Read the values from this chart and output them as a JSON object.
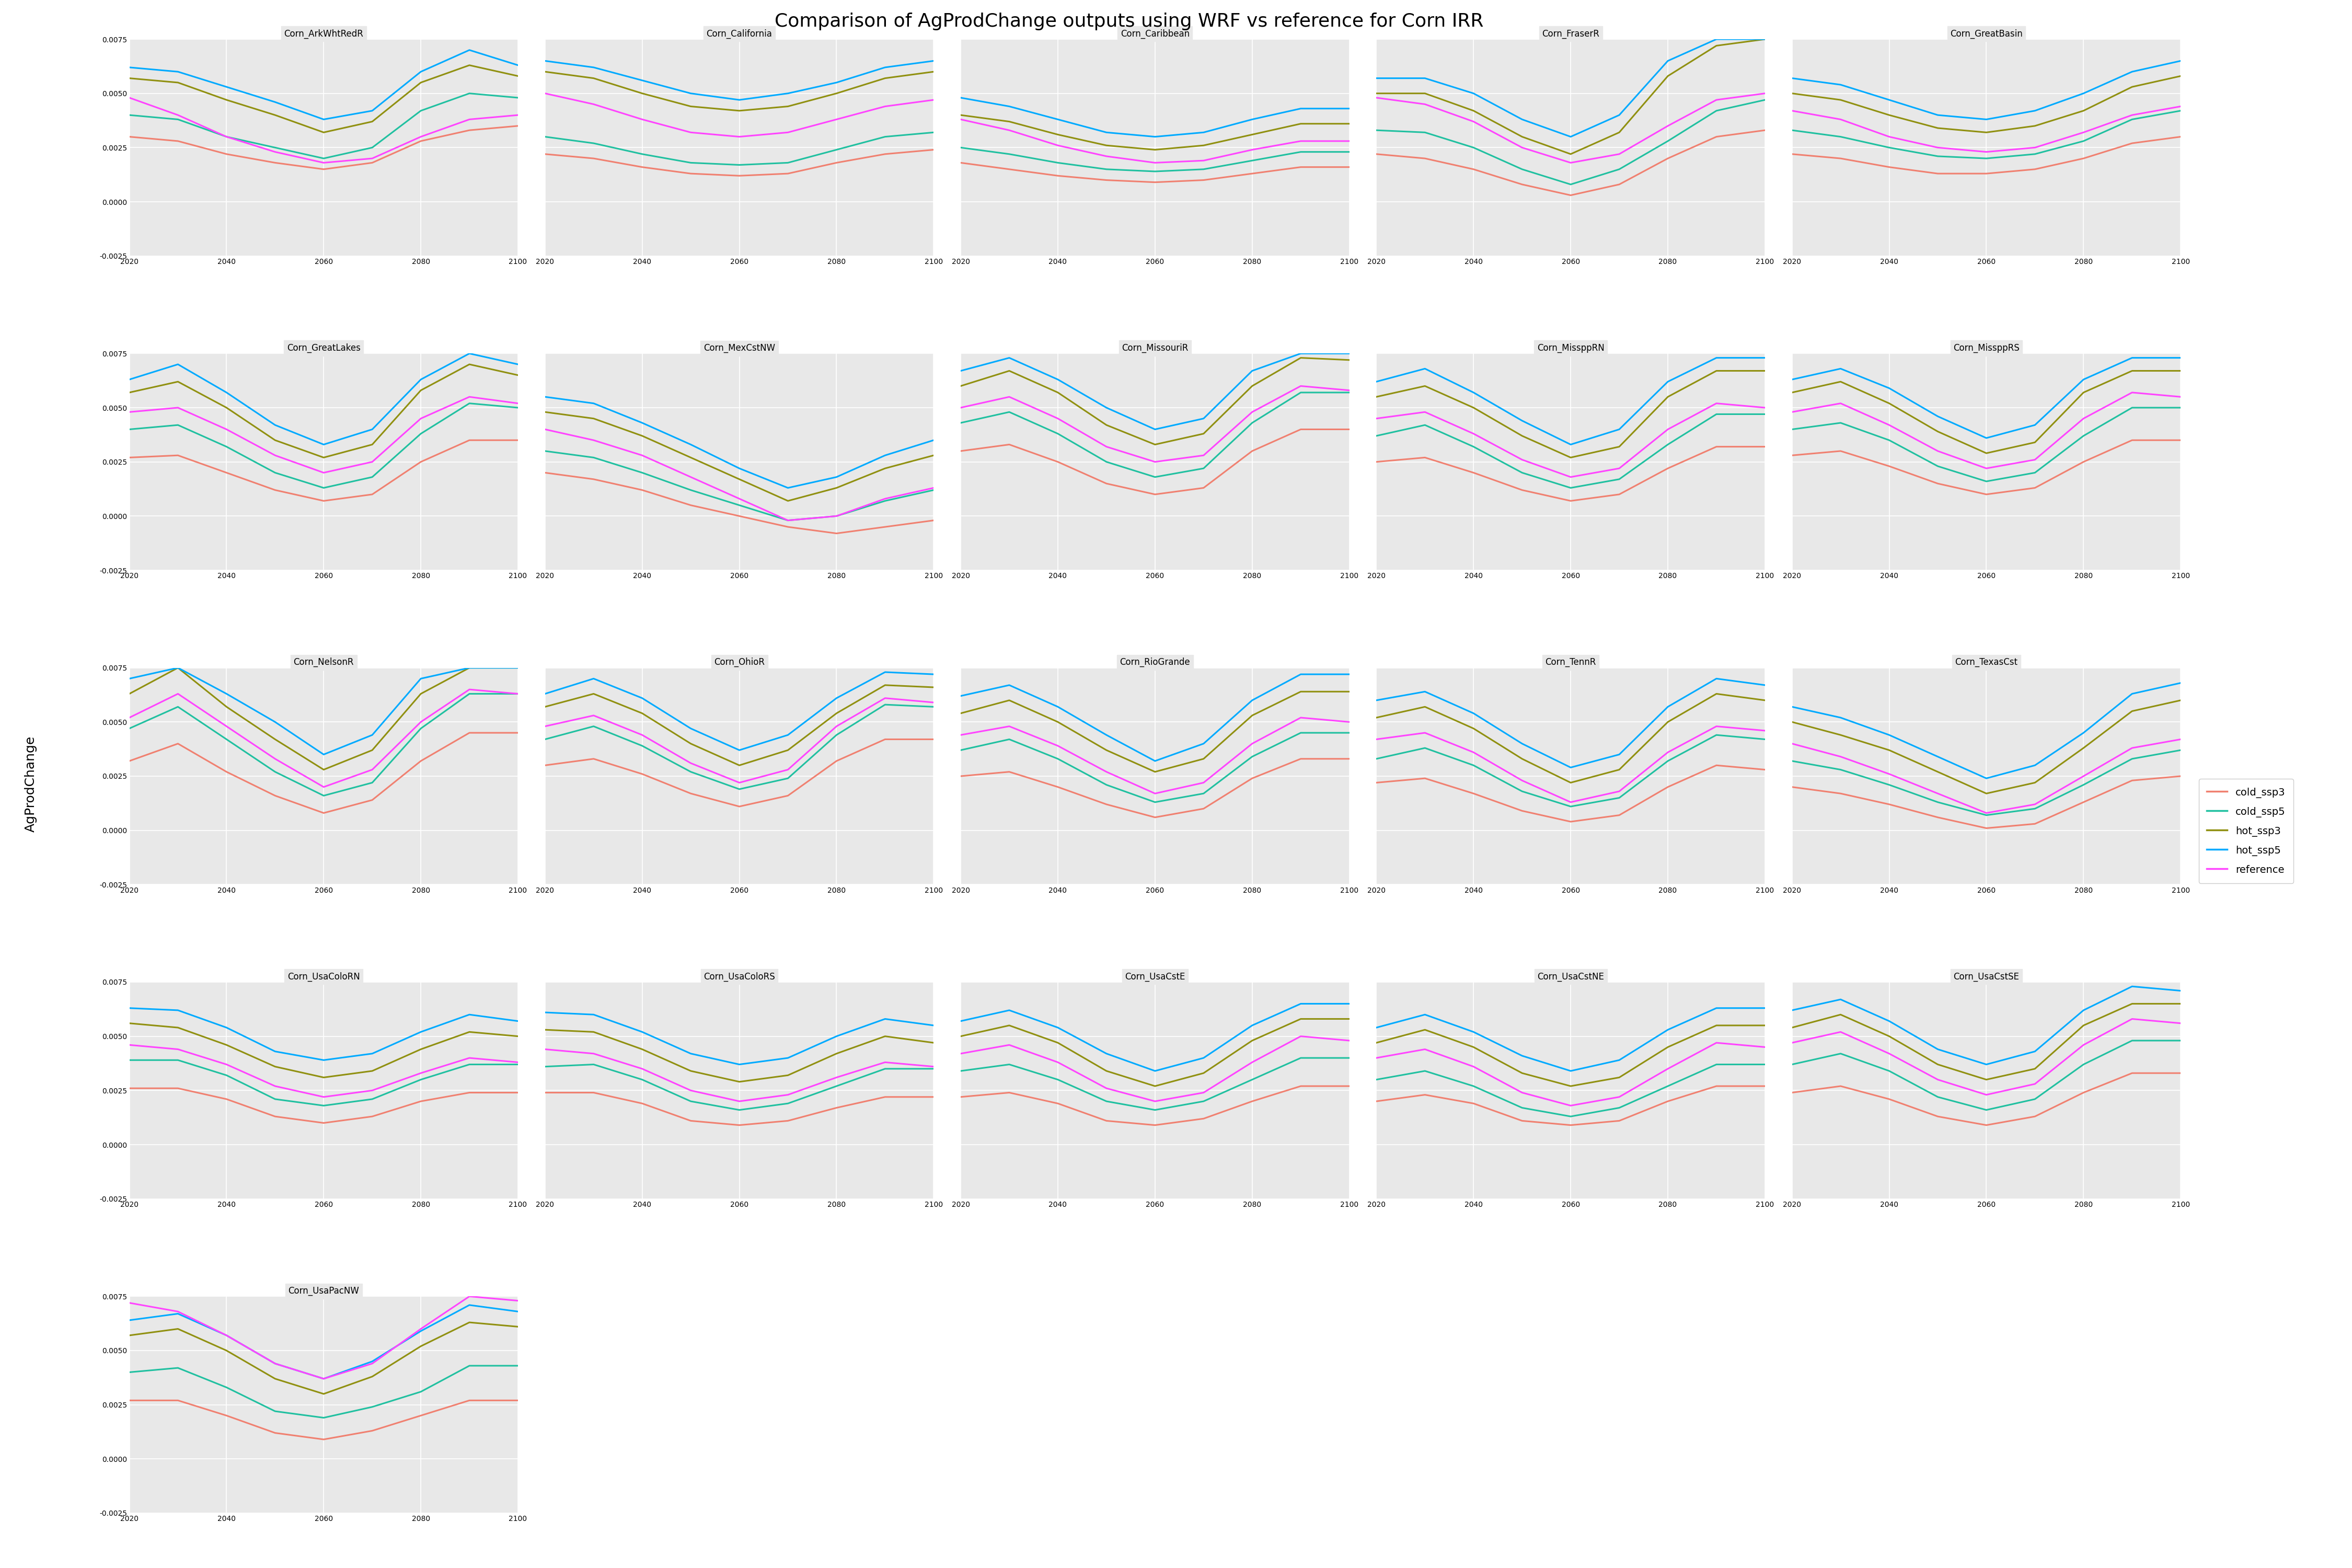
{
  "title": "Comparison of AgProdChange outputs using WRF vs reference for Corn IRR",
  "ylabel": "AgProdChange",
  "xlim": [
    2020,
    2100
  ],
  "ylim": [
    -0.0025,
    0.0075
  ],
  "yticks": [
    -0.0025,
    0.0,
    0.0025,
    0.005,
    0.0075
  ],
  "xticks": [
    2020,
    2040,
    2060,
    2080,
    2100
  ],
  "x": [
    2020,
    2030,
    2040,
    2050,
    2060,
    2070,
    2080,
    2090,
    2100
  ],
  "panel_bg": "#e8e8e8",
  "grid_color": "#ffffff",
  "line_colors": {
    "cold_ssp3": "#f08070",
    "cold_ssp5": "#20c0a0",
    "hot_ssp3": "#909010",
    "hot_ssp5": "#00aaff",
    "reference": "#ff44ff"
  },
  "line_width": 2.2,
  "subplots": [
    {
      "name": "Corn_ArkWhtRedR",
      "cold_ssp3": [
        0.003,
        0.0028,
        0.0022,
        0.0018,
        0.0015,
        0.0018,
        0.0028,
        0.0033,
        0.0035
      ],
      "cold_ssp5": [
        0.004,
        0.0038,
        0.003,
        0.0025,
        0.002,
        0.0025,
        0.0042,
        0.005,
        0.0048
      ],
      "hot_ssp3": [
        0.0057,
        0.0055,
        0.0047,
        0.004,
        0.0032,
        0.0037,
        0.0055,
        0.0063,
        0.0058
      ],
      "hot_ssp5": [
        0.0062,
        0.006,
        0.0053,
        0.0046,
        0.0038,
        0.0042,
        0.006,
        0.007,
        0.0063
      ],
      "reference": [
        0.0048,
        0.004,
        0.003,
        0.0023,
        0.0018,
        0.002,
        0.003,
        0.0038,
        0.004
      ]
    },
    {
      "name": "Corn_California",
      "cold_ssp3": [
        0.0022,
        0.002,
        0.0016,
        0.0013,
        0.0012,
        0.0013,
        0.0018,
        0.0022,
        0.0024
      ],
      "cold_ssp5": [
        0.003,
        0.0027,
        0.0022,
        0.0018,
        0.0017,
        0.0018,
        0.0024,
        0.003,
        0.0032
      ],
      "hot_ssp3": [
        0.006,
        0.0057,
        0.005,
        0.0044,
        0.0042,
        0.0044,
        0.005,
        0.0057,
        0.006
      ],
      "hot_ssp5": [
        0.0065,
        0.0062,
        0.0056,
        0.005,
        0.0047,
        0.005,
        0.0055,
        0.0062,
        0.0065
      ],
      "reference": [
        0.005,
        0.0045,
        0.0038,
        0.0032,
        0.003,
        0.0032,
        0.0038,
        0.0044,
        0.0047
      ]
    },
    {
      "name": "Corn_Caribbean",
      "cold_ssp3": [
        0.0018,
        0.0015,
        0.0012,
        0.001,
        0.0009,
        0.001,
        0.0013,
        0.0016,
        0.0016
      ],
      "cold_ssp5": [
        0.0025,
        0.0022,
        0.0018,
        0.0015,
        0.0014,
        0.0015,
        0.0019,
        0.0023,
        0.0023
      ],
      "hot_ssp3": [
        0.004,
        0.0037,
        0.0031,
        0.0026,
        0.0024,
        0.0026,
        0.0031,
        0.0036,
        0.0036
      ],
      "hot_ssp5": [
        0.0048,
        0.0044,
        0.0038,
        0.0032,
        0.003,
        0.0032,
        0.0038,
        0.0043,
        0.0043
      ],
      "reference": [
        0.0038,
        0.0033,
        0.0026,
        0.0021,
        0.0018,
        0.0019,
        0.0024,
        0.0028,
        0.0028
      ]
    },
    {
      "name": "Corn_FraserR",
      "cold_ssp3": [
        0.0022,
        0.002,
        0.0015,
        0.0008,
        0.0003,
        0.0008,
        0.002,
        0.003,
        0.0033
      ],
      "cold_ssp5": [
        0.0033,
        0.0032,
        0.0025,
        0.0015,
        0.0008,
        0.0015,
        0.0028,
        0.0042,
        0.0047
      ],
      "hot_ssp3": [
        0.005,
        0.005,
        0.0042,
        0.003,
        0.0022,
        0.0032,
        0.0058,
        0.0072,
        0.0075
      ],
      "hot_ssp5": [
        0.0057,
        0.0057,
        0.005,
        0.0038,
        0.003,
        0.004,
        0.0065,
        0.0075,
        0.0075
      ],
      "reference": [
        0.0048,
        0.0045,
        0.0037,
        0.0025,
        0.0018,
        0.0022,
        0.0035,
        0.0047,
        0.005
      ]
    },
    {
      "name": "Corn_GreatBasin",
      "cold_ssp3": [
        0.0022,
        0.002,
        0.0016,
        0.0013,
        0.0013,
        0.0015,
        0.002,
        0.0027,
        0.003
      ],
      "cold_ssp5": [
        0.0033,
        0.003,
        0.0025,
        0.0021,
        0.002,
        0.0022,
        0.0028,
        0.0038,
        0.0042
      ],
      "hot_ssp3": [
        0.005,
        0.0047,
        0.004,
        0.0034,
        0.0032,
        0.0035,
        0.0042,
        0.0053,
        0.0058
      ],
      "hot_ssp5": [
        0.0057,
        0.0054,
        0.0047,
        0.004,
        0.0038,
        0.0042,
        0.005,
        0.006,
        0.0065
      ],
      "reference": [
        0.0042,
        0.0038,
        0.003,
        0.0025,
        0.0023,
        0.0025,
        0.0032,
        0.004,
        0.0044
      ]
    },
    {
      "name": "Corn_GreatLakes",
      "cold_ssp3": [
        0.0027,
        0.0028,
        0.002,
        0.0012,
        0.0007,
        0.001,
        0.0025,
        0.0035,
        0.0035
      ],
      "cold_ssp5": [
        0.004,
        0.0042,
        0.0032,
        0.002,
        0.0013,
        0.0018,
        0.0038,
        0.0052,
        0.005
      ],
      "hot_ssp3": [
        0.0057,
        0.0062,
        0.005,
        0.0035,
        0.0027,
        0.0033,
        0.0058,
        0.007,
        0.0065
      ],
      "hot_ssp5": [
        0.0063,
        0.007,
        0.0057,
        0.0042,
        0.0033,
        0.004,
        0.0063,
        0.0075,
        0.007
      ],
      "reference": [
        0.0048,
        0.005,
        0.004,
        0.0028,
        0.002,
        0.0025,
        0.0045,
        0.0055,
        0.0052
      ]
    },
    {
      "name": "Corn_MexCstNW",
      "cold_ssp3": [
        0.002,
        0.0017,
        0.0012,
        0.0005,
        0.0,
        -0.0005,
        -0.0008,
        -0.0005,
        -0.0002
      ],
      "cold_ssp5": [
        0.003,
        0.0027,
        0.002,
        0.0012,
        0.0005,
        -0.0002,
        0.0,
        0.0007,
        0.0012
      ],
      "hot_ssp3": [
        0.0048,
        0.0045,
        0.0037,
        0.0027,
        0.0017,
        0.0007,
        0.0013,
        0.0022,
        0.0028
      ],
      "hot_ssp5": [
        0.0055,
        0.0052,
        0.0043,
        0.0033,
        0.0022,
        0.0013,
        0.0018,
        0.0028,
        0.0035
      ],
      "reference": [
        0.004,
        0.0035,
        0.0028,
        0.0018,
        0.0008,
        -0.0002,
        0.0,
        0.0008,
        0.0013
      ]
    },
    {
      "name": "Corn_MissouriR",
      "cold_ssp3": [
        0.003,
        0.0033,
        0.0025,
        0.0015,
        0.001,
        0.0013,
        0.003,
        0.004,
        0.004
      ],
      "cold_ssp5": [
        0.0043,
        0.0048,
        0.0038,
        0.0025,
        0.0018,
        0.0022,
        0.0043,
        0.0057,
        0.0057
      ],
      "hot_ssp3": [
        0.006,
        0.0067,
        0.0057,
        0.0042,
        0.0033,
        0.0038,
        0.006,
        0.0073,
        0.0072
      ],
      "hot_ssp5": [
        0.0067,
        0.0073,
        0.0063,
        0.005,
        0.004,
        0.0045,
        0.0067,
        0.0075,
        0.0075
      ],
      "reference": [
        0.005,
        0.0055,
        0.0045,
        0.0032,
        0.0025,
        0.0028,
        0.0048,
        0.006,
        0.0058
      ]
    },
    {
      "name": "Corn_MissppRN",
      "cold_ssp3": [
        0.0025,
        0.0027,
        0.002,
        0.0012,
        0.0007,
        0.001,
        0.0022,
        0.0032,
        0.0032
      ],
      "cold_ssp5": [
        0.0037,
        0.0042,
        0.0032,
        0.002,
        0.0013,
        0.0017,
        0.0033,
        0.0047,
        0.0047
      ],
      "hot_ssp3": [
        0.0055,
        0.006,
        0.005,
        0.0037,
        0.0027,
        0.0032,
        0.0055,
        0.0067,
        0.0067
      ],
      "hot_ssp5": [
        0.0062,
        0.0068,
        0.0057,
        0.0044,
        0.0033,
        0.004,
        0.0062,
        0.0073,
        0.0073
      ],
      "reference": [
        0.0045,
        0.0048,
        0.0038,
        0.0026,
        0.0018,
        0.0022,
        0.004,
        0.0052,
        0.005
      ]
    },
    {
      "name": "Corn_MissppRS",
      "cold_ssp3": [
        0.0028,
        0.003,
        0.0023,
        0.0015,
        0.001,
        0.0013,
        0.0025,
        0.0035,
        0.0035
      ],
      "cold_ssp5": [
        0.004,
        0.0043,
        0.0035,
        0.0023,
        0.0016,
        0.002,
        0.0037,
        0.005,
        0.005
      ],
      "hot_ssp3": [
        0.0057,
        0.0062,
        0.0052,
        0.0039,
        0.0029,
        0.0034,
        0.0057,
        0.0067,
        0.0067
      ],
      "hot_ssp5": [
        0.0063,
        0.0068,
        0.0059,
        0.0046,
        0.0036,
        0.0042,
        0.0063,
        0.0073,
        0.0073
      ],
      "reference": [
        0.0048,
        0.0052,
        0.0042,
        0.003,
        0.0022,
        0.0026,
        0.0045,
        0.0057,
        0.0055
      ]
    },
    {
      "name": "Corn_NelsonR",
      "cold_ssp3": [
        0.0032,
        0.004,
        0.0027,
        0.0016,
        0.0008,
        0.0014,
        0.0032,
        0.0045,
        0.0045
      ],
      "cold_ssp5": [
        0.0047,
        0.0057,
        0.0042,
        0.0027,
        0.0016,
        0.0022,
        0.0047,
        0.0063,
        0.0063
      ],
      "hot_ssp3": [
        0.0063,
        0.0075,
        0.0057,
        0.0042,
        0.0028,
        0.0037,
        0.0063,
        0.0075,
        0.0075
      ],
      "hot_ssp5": [
        0.007,
        0.0075,
        0.0063,
        0.005,
        0.0035,
        0.0044,
        0.007,
        0.0075,
        0.0075
      ],
      "reference": [
        0.0052,
        0.0063,
        0.0048,
        0.0033,
        0.002,
        0.0028,
        0.005,
        0.0065,
        0.0063
      ]
    },
    {
      "name": "Corn_OhioR",
      "cold_ssp3": [
        0.003,
        0.0033,
        0.0026,
        0.0017,
        0.0011,
        0.0016,
        0.0032,
        0.0042,
        0.0042
      ],
      "cold_ssp5": [
        0.0042,
        0.0048,
        0.0039,
        0.0027,
        0.0019,
        0.0024,
        0.0044,
        0.0058,
        0.0057
      ],
      "hot_ssp3": [
        0.0057,
        0.0063,
        0.0054,
        0.004,
        0.003,
        0.0037,
        0.0054,
        0.0067,
        0.0066
      ],
      "hot_ssp5": [
        0.0063,
        0.007,
        0.0061,
        0.0047,
        0.0037,
        0.0044,
        0.0061,
        0.0073,
        0.0072
      ],
      "reference": [
        0.0048,
        0.0053,
        0.0044,
        0.0031,
        0.0022,
        0.0028,
        0.0048,
        0.0061,
        0.0059
      ]
    },
    {
      "name": "Corn_RioGrande",
      "cold_ssp3": [
        0.0025,
        0.0027,
        0.002,
        0.0012,
        0.0006,
        0.001,
        0.0024,
        0.0033,
        0.0033
      ],
      "cold_ssp5": [
        0.0037,
        0.0042,
        0.0033,
        0.0021,
        0.0013,
        0.0017,
        0.0034,
        0.0045,
        0.0045
      ],
      "hot_ssp3": [
        0.0054,
        0.006,
        0.005,
        0.0037,
        0.0027,
        0.0033,
        0.0053,
        0.0064,
        0.0064
      ],
      "hot_ssp5": [
        0.0062,
        0.0067,
        0.0057,
        0.0044,
        0.0032,
        0.004,
        0.006,
        0.0072,
        0.0072
      ],
      "reference": [
        0.0044,
        0.0048,
        0.0039,
        0.0027,
        0.0017,
        0.0022,
        0.004,
        0.0052,
        0.005
      ]
    },
    {
      "name": "Corn_TennR",
      "cold_ssp3": [
        0.0022,
        0.0024,
        0.0017,
        0.0009,
        0.0004,
        0.0007,
        0.002,
        0.003,
        0.0028
      ],
      "cold_ssp5": [
        0.0033,
        0.0038,
        0.003,
        0.0018,
        0.0011,
        0.0015,
        0.0032,
        0.0044,
        0.0042
      ],
      "hot_ssp3": [
        0.0052,
        0.0057,
        0.0047,
        0.0033,
        0.0022,
        0.0028,
        0.005,
        0.0063,
        0.006
      ],
      "hot_ssp5": [
        0.006,
        0.0064,
        0.0054,
        0.004,
        0.0029,
        0.0035,
        0.0057,
        0.007,
        0.0067
      ],
      "reference": [
        0.0042,
        0.0045,
        0.0036,
        0.0023,
        0.0013,
        0.0018,
        0.0036,
        0.0048,
        0.0046
      ]
    },
    {
      "name": "Corn_TexasCst",
      "cold_ssp3": [
        0.002,
        0.0017,
        0.0012,
        0.0006,
        0.0001,
        0.0003,
        0.0013,
        0.0023,
        0.0025
      ],
      "cold_ssp5": [
        0.0032,
        0.0028,
        0.0021,
        0.0013,
        0.0007,
        0.001,
        0.0021,
        0.0033,
        0.0037
      ],
      "hot_ssp3": [
        0.005,
        0.0044,
        0.0037,
        0.0027,
        0.0017,
        0.0022,
        0.0038,
        0.0055,
        0.006
      ],
      "hot_ssp5": [
        0.0057,
        0.0052,
        0.0044,
        0.0034,
        0.0024,
        0.003,
        0.0045,
        0.0063,
        0.0068
      ],
      "reference": [
        0.004,
        0.0034,
        0.0026,
        0.0017,
        0.0008,
        0.0012,
        0.0025,
        0.0038,
        0.0042
      ]
    },
    {
      "name": "Corn_UsaColoRN",
      "cold_ssp3": [
        0.0026,
        0.0026,
        0.0021,
        0.0013,
        0.001,
        0.0013,
        0.002,
        0.0024,
        0.0024
      ],
      "cold_ssp5": [
        0.0039,
        0.0039,
        0.0032,
        0.0021,
        0.0018,
        0.0021,
        0.003,
        0.0037,
        0.0037
      ],
      "hot_ssp3": [
        0.0056,
        0.0054,
        0.0046,
        0.0036,
        0.0031,
        0.0034,
        0.0044,
        0.0052,
        0.005
      ],
      "hot_ssp5": [
        0.0063,
        0.0062,
        0.0054,
        0.0043,
        0.0039,
        0.0042,
        0.0052,
        0.006,
        0.0057
      ],
      "reference": [
        0.0046,
        0.0044,
        0.0037,
        0.0027,
        0.0022,
        0.0025,
        0.0033,
        0.004,
        0.0038
      ]
    },
    {
      "name": "Corn_UsaColoRS",
      "cold_ssp3": [
        0.0024,
        0.0024,
        0.0019,
        0.0011,
        0.0009,
        0.0011,
        0.0017,
        0.0022,
        0.0022
      ],
      "cold_ssp5": [
        0.0036,
        0.0037,
        0.003,
        0.002,
        0.0016,
        0.0019,
        0.0027,
        0.0035,
        0.0035
      ],
      "hot_ssp3": [
        0.0053,
        0.0052,
        0.0044,
        0.0034,
        0.0029,
        0.0032,
        0.0042,
        0.005,
        0.0047
      ],
      "hot_ssp5": [
        0.0061,
        0.006,
        0.0052,
        0.0042,
        0.0037,
        0.004,
        0.005,
        0.0058,
        0.0055
      ],
      "reference": [
        0.0044,
        0.0042,
        0.0035,
        0.0025,
        0.002,
        0.0023,
        0.0031,
        0.0038,
        0.0036
      ]
    },
    {
      "name": "Corn_UsaCstE",
      "cold_ssp3": [
        0.0022,
        0.0024,
        0.0019,
        0.0011,
        0.0009,
        0.0012,
        0.002,
        0.0027,
        0.0027
      ],
      "cold_ssp5": [
        0.0034,
        0.0037,
        0.003,
        0.002,
        0.0016,
        0.002,
        0.003,
        0.004,
        0.004
      ],
      "hot_ssp3": [
        0.005,
        0.0055,
        0.0047,
        0.0034,
        0.0027,
        0.0033,
        0.0048,
        0.0058,
        0.0058
      ],
      "hot_ssp5": [
        0.0057,
        0.0062,
        0.0054,
        0.0042,
        0.0034,
        0.004,
        0.0055,
        0.0065,
        0.0065
      ],
      "reference": [
        0.0042,
        0.0046,
        0.0038,
        0.0026,
        0.002,
        0.0024,
        0.0038,
        0.005,
        0.0048
      ]
    },
    {
      "name": "Corn_UsaCstNE",
      "cold_ssp3": [
        0.002,
        0.0023,
        0.0019,
        0.0011,
        0.0009,
        0.0011,
        0.002,
        0.0027,
        0.0027
      ],
      "cold_ssp5": [
        0.003,
        0.0034,
        0.0027,
        0.0017,
        0.0013,
        0.0017,
        0.0027,
        0.0037,
        0.0037
      ],
      "hot_ssp3": [
        0.0047,
        0.0053,
        0.0045,
        0.0033,
        0.0027,
        0.0031,
        0.0045,
        0.0055,
        0.0055
      ],
      "hot_ssp5": [
        0.0054,
        0.006,
        0.0052,
        0.0041,
        0.0034,
        0.0039,
        0.0053,
        0.0063,
        0.0063
      ],
      "reference": [
        0.004,
        0.0044,
        0.0036,
        0.0024,
        0.0018,
        0.0022,
        0.0035,
        0.0047,
        0.0045
      ]
    },
    {
      "name": "Corn_UsaCstSE",
      "cold_ssp3": [
        0.0024,
        0.0027,
        0.0021,
        0.0013,
        0.0009,
        0.0013,
        0.0024,
        0.0033,
        0.0033
      ],
      "cold_ssp5": [
        0.0037,
        0.0042,
        0.0034,
        0.0022,
        0.0016,
        0.0021,
        0.0037,
        0.0048,
        0.0048
      ],
      "hot_ssp3": [
        0.0054,
        0.006,
        0.005,
        0.0037,
        0.003,
        0.0035,
        0.0055,
        0.0065,
        0.0065
      ],
      "hot_ssp5": [
        0.0062,
        0.0067,
        0.0057,
        0.0044,
        0.0037,
        0.0043,
        0.0062,
        0.0073,
        0.0071
      ],
      "reference": [
        0.0047,
        0.0052,
        0.0042,
        0.003,
        0.0023,
        0.0028,
        0.0046,
        0.0058,
        0.0056
      ]
    },
    {
      "name": "Corn_UsaPacNW",
      "cold_ssp3": [
        0.0027,
        0.0027,
        0.002,
        0.0012,
        0.0009,
        0.0013,
        0.002,
        0.0027,
        0.0027
      ],
      "cold_ssp5": [
        0.004,
        0.0042,
        0.0033,
        0.0022,
        0.0019,
        0.0024,
        0.0031,
        0.0043,
        0.0043
      ],
      "hot_ssp3": [
        0.0057,
        0.006,
        0.005,
        0.0037,
        0.003,
        0.0038,
        0.0052,
        0.0063,
        0.0061
      ],
      "hot_ssp5": [
        0.0064,
        0.0067,
        0.0057,
        0.0044,
        0.0037,
        0.0045,
        0.0059,
        0.0071,
        0.0068
      ],
      "reference": [
        0.0072,
        0.0068,
        0.0057,
        0.0044,
        0.0037,
        0.0044,
        0.006,
        0.0075,
        0.0073
      ]
    }
  ]
}
